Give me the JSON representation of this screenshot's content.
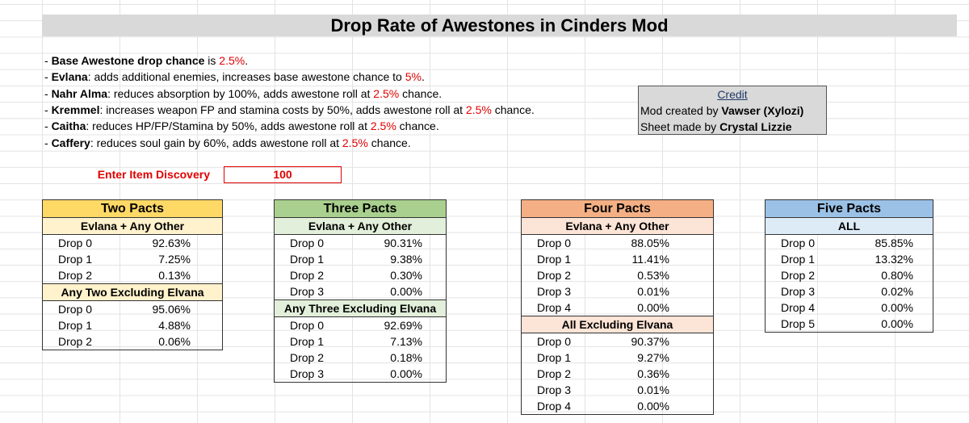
{
  "title": "Drop Rate of Awestones in Cinders Mod",
  "notes": [
    [
      {
        "text": "- "
      },
      {
        "text": "Base Awestone drop chance",
        "style": "bold"
      },
      {
        "text": " is "
      },
      {
        "text": "2.5%",
        "style": "red"
      },
      {
        "text": "."
      }
    ],
    [
      {
        "text": "- "
      },
      {
        "text": "Evlana",
        "style": "bold"
      },
      {
        "text": ": adds additional enemies, increases base awestone chance to "
      },
      {
        "text": "5%",
        "style": "red"
      },
      {
        "text": "."
      }
    ],
    [
      {
        "text": "- "
      },
      {
        "text": "Nahr Alma",
        "style": "bold"
      },
      {
        "text": ": reduces absorption by 100%, adds awestone roll at "
      },
      {
        "text": "2.5%",
        "style": "red"
      },
      {
        "text": " chance."
      }
    ],
    [
      {
        "text": "- "
      },
      {
        "text": "Kremmel",
        "style": "bold"
      },
      {
        "text": ": increases weapon FP and stamina costs by 50%, adds awestone roll at "
      },
      {
        "text": "2.5%",
        "style": "red"
      },
      {
        "text": " chance."
      }
    ],
    [
      {
        "text": "- "
      },
      {
        "text": "Caitha",
        "style": "bold"
      },
      {
        "text": ": reduces HP/FP/Stamina by 50%, adds awestone roll at "
      },
      {
        "text": "2.5%",
        "style": "red"
      },
      {
        "text": " chance."
      }
    ],
    [
      {
        "text": "- "
      },
      {
        "text": "Caffery",
        "style": "bold"
      },
      {
        "text": ": reduces soul gain by 60%, adds awestone roll at "
      },
      {
        "text": "2.5%",
        "style": "red"
      },
      {
        "text": " chance."
      }
    ]
  ],
  "input": {
    "label": "Enter Item Discovery",
    "value": "100"
  },
  "credit": {
    "heading": "Credit",
    "lines": [
      [
        {
          "text": "Mod created by "
        },
        {
          "text": "Vawser (Xylozi)",
          "style": "bold"
        }
      ],
      [
        {
          "text": "Sheet made by "
        },
        {
          "text": "Crystal Lizzie",
          "style": "bold"
        }
      ]
    ]
  },
  "tables": [
    {
      "title": "Two Pacts",
      "color": "#ffd966",
      "sub_color": "#fff2cc",
      "sections": [
        {
          "title": "Evlana + Any Other",
          "rows": [
            [
              "Drop 0",
              "92.63%"
            ],
            [
              "Drop 1",
              "7.25%"
            ],
            [
              "Drop 2",
              "0.13%"
            ]
          ]
        },
        {
          "title": "Any Two Excluding Elvana",
          "rows": [
            [
              "Drop 0",
              "95.06%"
            ],
            [
              "Drop 1",
              "4.88%"
            ],
            [
              "Drop 2",
              "0.06%"
            ]
          ]
        }
      ]
    },
    {
      "title": "Three Pacts",
      "color": "#a9d08e",
      "sub_color": "#e2efda",
      "sections": [
        {
          "title": "Evlana + Any Other",
          "rows": [
            [
              "Drop 0",
              "90.31%"
            ],
            [
              "Drop 1",
              "9.38%"
            ],
            [
              "Drop 2",
              "0.30%"
            ],
            [
              "Drop 3",
              "0.00%"
            ]
          ]
        },
        {
          "title": "Any Three Excluding Elvana",
          "rows": [
            [
              "Drop 0",
              "92.69%"
            ],
            [
              "Drop 1",
              "7.13%"
            ],
            [
              "Drop 2",
              "0.18%"
            ],
            [
              "Drop 3",
              "0.00%"
            ]
          ]
        }
      ]
    },
    {
      "title": "Four Pacts",
      "color": "#f4b084",
      "sub_color": "#fce4d6",
      "sections": [
        {
          "title": "Evlana + Any Other",
          "rows": [
            [
              "Drop 0",
              "88.05%"
            ],
            [
              "Drop 1",
              "11.41%"
            ],
            [
              "Drop 2",
              "0.53%"
            ],
            [
              "Drop 3",
              "0.01%"
            ],
            [
              "Drop 4",
              "0.00%"
            ]
          ]
        },
        {
          "title": "All Excluding Elvana",
          "rows": [
            [
              "Drop 0",
              "90.37%"
            ],
            [
              "Drop 1",
              "9.27%"
            ],
            [
              "Drop 2",
              "0.36%"
            ],
            [
              "Drop 3",
              "0.01%"
            ],
            [
              "Drop 4",
              "0.00%"
            ]
          ]
        }
      ]
    },
    {
      "title": "Five Pacts",
      "color": "#9bc2e6",
      "sub_color": "#ddebf7",
      "sections": [
        {
          "title": "ALL",
          "rows": [
            [
              "Drop 0",
              "85.85%"
            ],
            [
              "Drop 1",
              "13.32%"
            ],
            [
              "Drop 2",
              "0.80%"
            ],
            [
              "Drop 3",
              "0.02%"
            ],
            [
              "Drop 4",
              "0.00%"
            ],
            [
              "Drop 5",
              "0.00%"
            ]
          ]
        }
      ]
    }
  ]
}
